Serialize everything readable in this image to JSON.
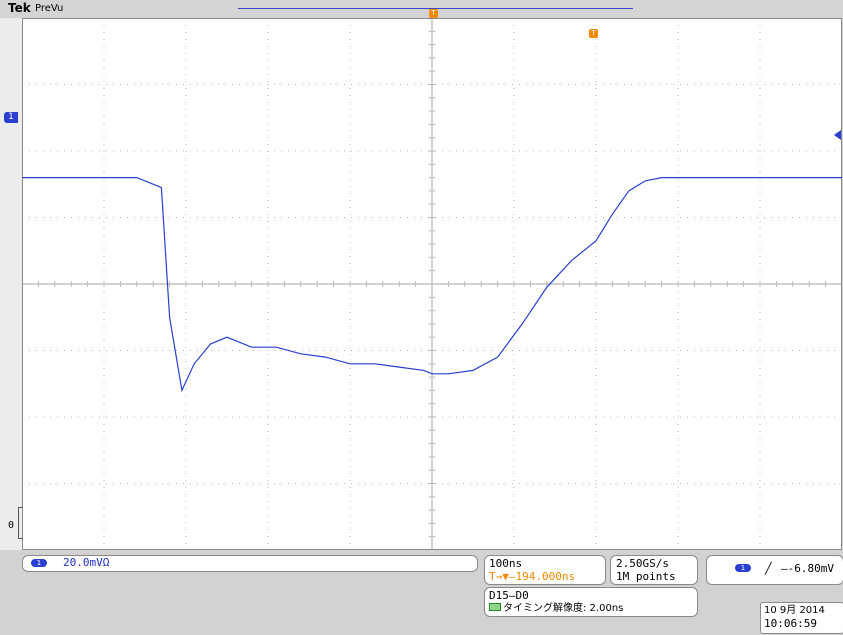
{
  "header": {
    "brand": "Tek",
    "mode": "PreVu"
  },
  "channel": {
    "number": "1",
    "scale": "20.0mV",
    "coupling_symbol": "Ω"
  },
  "markers": {
    "trigger_position_symbol": "T",
    "ground_label": "0"
  },
  "timebase": {
    "scale": "100ns",
    "delay": "194.000ns",
    "sample_rate": "2.50GS/s",
    "record_length": "1M points"
  },
  "trigger": {
    "source": "1",
    "slope_symbol": "╱",
    "level": "-6.80mV"
  },
  "digital": {
    "channels": "D15–D0",
    "timing_label": "タイミング解像度: 2.00ns"
  },
  "clock": {
    "date": "10 9月 2014",
    "time": "10:06:59"
  },
  "colors": {
    "trace": "#2a3fd0",
    "marker_orange": "#f08a00",
    "grid": "#b8b8b8"
  },
  "chart_data": {
    "type": "line",
    "x_divisions": 10,
    "y_divisions": 8,
    "x_unit": "ns",
    "x_per_div": 100,
    "y_unit": "mV",
    "y_per_div": 20,
    "series": [
      {
        "x": [
          -500,
          -360,
          -330,
          -320,
          -305,
          -290,
          -270,
          -250,
          -220,
          -190,
          -160,
          -130,
          -100,
          -70,
          -40,
          -10,
          0,
          20,
          50,
          80,
          110,
          140,
          170,
          200,
          220,
          240,
          260,
          280,
          300,
          500
        ],
        "y": [
          32,
          32,
          29,
          -10,
          -32,
          -24,
          -18,
          -16,
          -19,
          -19,
          -21,
          -22,
          -24,
          -24,
          -25,
          -26,
          -27,
          -27,
          -26,
          -22,
          -12,
          -1,
          7,
          13,
          21,
          28,
          31,
          32,
          32,
          32
        ]
      }
    ]
  }
}
